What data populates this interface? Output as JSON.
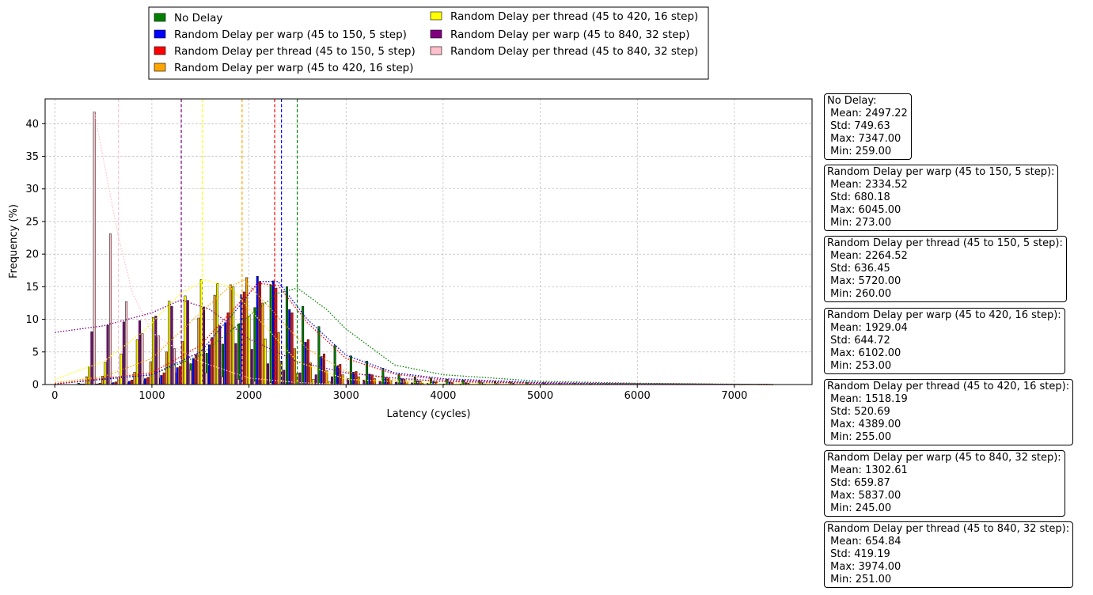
{
  "chart_data": {
    "type": "bar",
    "title": "",
    "xlabel": "Latency (cycles)",
    "ylabel": "Frequency (%)",
    "xlim": [
      -100,
      7800
    ],
    "ylim": [
      0,
      43.8
    ],
    "xticks": [
      0,
      1000,
      2000,
      3000,
      4000,
      5000,
      6000,
      7000
    ],
    "yticks": [
      0,
      5,
      10,
      15,
      20,
      25,
      30,
      35,
      40
    ],
    "grid": true,
    "legend_position": "above plot, two columns",
    "series": [
      {
        "name": "No Delay",
        "color": "#008000",
        "mean": 2497.22,
        "x": [
          245,
          410,
          575,
          740,
          905,
          1070,
          1235,
          1400,
          1565,
          1730,
          1895,
          2060,
          2225,
          2390,
          2555,
          2720,
          2885,
          3050,
          3215,
          3380,
          3545,
          3710,
          3875,
          4040,
          4205,
          4370,
          4535,
          4700,
          4865,
          5030,
          5195,
          5360,
          5525,
          5690
        ],
        "values": [
          0.2,
          0.1,
          0.2,
          0.3,
          0.6,
          1.0,
          1.8,
          3.2,
          4.8,
          6.2,
          9.3,
          11.8,
          15.3,
          15.0,
          12.0,
          8.9,
          6.0,
          4.4,
          3.6,
          2.5,
          1.6,
          1.2,
          1.0,
          0.8,
          0.7,
          0.6,
          0.5,
          0.4,
          0.3,
          0.3,
          0.2,
          0.2,
          0.1,
          0.1
        ],
        "kde": [
          [
            0,
            0.1
          ],
          [
            1000,
            1.5
          ],
          [
            1500,
            4.5
          ],
          [
            2000,
            10.5
          ],
          [
            2300,
            14.0
          ],
          [
            2500,
            14.8
          ],
          [
            2800,
            11.5
          ],
          [
            3000,
            8.5
          ],
          [
            3500,
            3.0
          ],
          [
            4000,
            1.5
          ],
          [
            5000,
            0.5
          ],
          [
            6000,
            0.2
          ],
          [
            7400,
            0
          ]
        ]
      },
      {
        "name": "Random Delay per warp (45 to 150, 5 step)",
        "color": "#0000ff",
        "mean": 2334.52,
        "x": [
          272,
          437,
          602,
          767,
          932,
          1097,
          1262,
          1427,
          1592,
          1757,
          1922,
          2087,
          2252,
          2417,
          2582,
          2747,
          2912,
          3077,
          3242,
          3407,
          3572,
          3737,
          3902,
          4067,
          4232,
          4397,
          4562,
          4727,
          4892,
          5057
        ],
        "values": [
          0.1,
          0.1,
          0.3,
          0.5,
          0.9,
          1.4,
          2.6,
          4.0,
          6.1,
          9.5,
          13.8,
          16.6,
          15.9,
          11.5,
          6.5,
          4.3,
          2.9,
          1.9,
          1.6,
          1.1,
          0.9,
          0.6,
          0.5,
          0.4,
          0.3,
          0.3,
          0.2,
          0.2,
          0.1,
          0.1
        ],
        "kde": [
          [
            0,
            0.1
          ],
          [
            1000,
            1.5
          ],
          [
            1500,
            5.0
          ],
          [
            1900,
            12.0
          ],
          [
            2100,
            15.8
          ],
          [
            2300,
            15.8
          ],
          [
            2600,
            10.0
          ],
          [
            3000,
            4.5
          ],
          [
            3500,
            1.8
          ],
          [
            4000,
            0.9
          ],
          [
            5000,
            0.3
          ],
          [
            6000,
            0.1
          ],
          [
            7400,
            0
          ]
        ]
      },
      {
        "name": "Random Delay per thread (45 to 150, 5 step)",
        "color": "#ff0000",
        "mean": 2264.52,
        "x": [
          299,
          464,
          629,
          794,
          959,
          1124,
          1289,
          1454,
          1619,
          1784,
          1949,
          2114,
          2279,
          2444,
          2609,
          2774,
          2939,
          3104,
          3269,
          3434,
          3599,
          3764,
          3929,
          4094,
          4259,
          4424
        ],
        "values": [
          0.1,
          0.2,
          0.4,
          0.7,
          1.1,
          1.8,
          2.8,
          4.6,
          7.2,
          11.0,
          14.2,
          15.8,
          14.8,
          11.0,
          6.9,
          4.7,
          3.1,
          2.0,
          1.5,
          1.0,
          0.8,
          0.5,
          0.4,
          0.3,
          0.2,
          0.1
        ],
        "kde": [
          [
            0,
            0.1
          ],
          [
            1000,
            1.8
          ],
          [
            1500,
            6.0
          ],
          [
            1900,
            12.5
          ],
          [
            2100,
            15.5
          ],
          [
            2300,
            15.2
          ],
          [
            2600,
            9.5
          ],
          [
            3000,
            4.0
          ],
          [
            3500,
            1.6
          ],
          [
            4000,
            0.7
          ],
          [
            5000,
            0.2
          ],
          [
            7400,
            0
          ]
        ]
      },
      {
        "name": "Random Delay per warp (45 to 420, 16 step)",
        "color": "#ffa500",
        "mean": 1929.04,
        "x": [
          326,
          491,
          656,
          821,
          986,
          1151,
          1316,
          1481,
          1646,
          1811,
          1976,
          2141,
          2306,
          2471,
          2636,
          2801,
          2966,
          3131,
          3296,
          3461,
          3626,
          3791
        ],
        "values": [
          1.2,
          1.3,
          1.1,
          1.9,
          3.5,
          5.0,
          6.6,
          10.2,
          13.7,
          15.3,
          16.4,
          12.5,
          8.0,
          5.5,
          3.3,
          2.1,
          1.5,
          1.2,
          0.9,
          0.6,
          0.4,
          0.2
        ],
        "kde": [
          [
            0,
            0.3
          ],
          [
            500,
            1.2
          ],
          [
            1000,
            4.0
          ],
          [
            1500,
            11.0
          ],
          [
            1800,
            15.0
          ],
          [
            1950,
            16.0
          ],
          [
            2200,
            12.0
          ],
          [
            2600,
            5.5
          ],
          [
            3000,
            2.0
          ],
          [
            3500,
            0.7
          ],
          [
            4500,
            0.2
          ],
          [
            7400,
            0
          ]
        ]
      },
      {
        "name": "Random Delay per thread (45 to 420, 16 step)",
        "color": "#ffff00",
        "mean": 1518.19,
        "x": [
          353,
          518,
          683,
          848,
          1013,
          1178,
          1343,
          1508,
          1673,
          1838,
          2003,
          2168,
          2333,
          2498,
          2663,
          2828
        ],
        "values": [
          2.7,
          3.4,
          4.7,
          6.9,
          10.3,
          12.8,
          13.6,
          16.1,
          15.5,
          15.0,
          10.5,
          7.0,
          3.6,
          1.7,
          0.8,
          0.4
        ],
        "kde": [
          [
            0,
            0.8
          ],
          [
            500,
            3.5
          ],
          [
            900,
            8.0
          ],
          [
            1300,
            14.0
          ],
          [
            1550,
            16.0
          ],
          [
            1800,
            15.0
          ],
          [
            2100,
            10.0
          ],
          [
            2500,
            3.5
          ],
          [
            3000,
            0.8
          ],
          [
            4000,
            0.1
          ],
          [
            7400,
            0
          ]
        ]
      },
      {
        "name": "Random Delay per warp (45 to 840, 32 step)",
        "color": "#800080",
        "mean": 1302.61,
        "x": [
          380,
          545,
          710,
          875,
          1040,
          1205,
          1370,
          1535,
          1700,
          1865,
          2030,
          2195,
          2360,
          2525,
          2690,
          2855,
          3020,
          3185,
          3350,
          3515,
          3680,
          3845,
          4010,
          4175
        ],
        "values": [
          8.1,
          9.1,
          9.6,
          9.8,
          10.5,
          12.0,
          12.9,
          11.9,
          9.0,
          6.3,
          5.4,
          3.2,
          2.2,
          1.8,
          1.5,
          1.2,
          0.9,
          0.7,
          0.5,
          0.4,
          0.3,
          0.2,
          0.1,
          0.1
        ],
        "kde": [
          [
            0,
            8.0
          ],
          [
            500,
            9.0
          ],
          [
            1000,
            11.0
          ],
          [
            1300,
            13.0
          ],
          [
            1600,
            11.5
          ],
          [
            2000,
            7.0
          ],
          [
            2500,
            3.5
          ],
          [
            3000,
            1.8
          ],
          [
            3500,
            1.0
          ],
          [
            4000,
            0.5
          ],
          [
            5000,
            0.2
          ],
          [
            7400,
            0
          ]
        ]
      },
      {
        "name": "Random Delay per thread (45 to 840, 32 step)",
        "color": "#ffc0cb",
        "mean": 654.84,
        "x": [
          407,
          572,
          737,
          902,
          1067,
          1232,
          1397,
          1562,
          1727,
          1892,
          2057,
          2222,
          2387
        ],
        "values": [
          41.8,
          23.1,
          12.7,
          7.8,
          7.5,
          5.5,
          2.2,
          1.8,
          1.2,
          0.8,
          0.5,
          0.3,
          0.1
        ],
        "kde": [
          [
            407,
            41.8
          ],
          [
            650,
            23.0
          ],
          [
            800,
            14.0
          ],
          [
            1000,
            8.0
          ],
          [
            1200,
            6.0
          ],
          [
            1500,
            3.5
          ],
          [
            2000,
            1.0
          ],
          [
            2500,
            0.3
          ],
          [
            3000,
            0
          ],
          [
            7400,
            0
          ]
        ]
      }
    ]
  },
  "legend": {
    "items": [
      {
        "label": "No Delay",
        "color": "#008000"
      },
      {
        "label": "Random Delay per warp (45 to 150, 5 step)",
        "color": "#0000ff"
      },
      {
        "label": "Random Delay per thread (45 to 150, 5 step)",
        "color": "#ff0000"
      },
      {
        "label": "Random Delay per warp (45 to 420, 16 step)",
        "color": "#ffa500"
      },
      {
        "label": "Random Delay per thread (45 to 420, 16 step)",
        "color": "#ffff00"
      },
      {
        "label": "Random Delay per warp (45 to 840, 32 step)",
        "color": "#800080"
      },
      {
        "label": "Random Delay per thread (45 to 840, 32 step)",
        "color": "#ffc0cb"
      }
    ]
  },
  "stats": [
    {
      "title": "No Delay:",
      "mean": " Mean: 2497.22",
      "std": " Std: 749.63",
      "max": " Max: 7347.00",
      "min": " Min: 259.00"
    },
    {
      "title": "Random Delay per warp (45 to 150, 5 step):",
      "mean": " Mean: 2334.52",
      "std": " Std: 680.18",
      "max": " Max: 6045.00",
      "min": " Min: 273.00"
    },
    {
      "title": "Random Delay per thread (45 to 150, 5 step):",
      "mean": " Mean: 2264.52",
      "std": " Std: 636.45",
      "max": " Max: 5720.00",
      "min": " Min: 260.00"
    },
    {
      "title": "Random Delay per warp (45 to 420, 16 step):",
      "mean": " Mean: 1929.04",
      "std": " Std: 644.72",
      "max": " Max: 6102.00",
      "min": " Min: 253.00"
    },
    {
      "title": "Random Delay per thread (45 to 420, 16 step):",
      "mean": " Mean: 1518.19",
      "std": " Std: 520.69",
      "max": " Max: 4389.00",
      "min": " Min: 255.00"
    },
    {
      "title": "Random Delay per warp (45 to 840, 32 step):",
      "mean": " Mean: 1302.61",
      "std": " Std: 659.87",
      "max": " Max: 5837.00",
      "min": " Min: 245.00"
    },
    {
      "title": "Random Delay per thread (45 to 840, 32 step):",
      "mean": " Mean: 654.84",
      "std": " Std: 419.19",
      "max": " Max: 3974.00",
      "min": " Min: 251.00"
    }
  ]
}
